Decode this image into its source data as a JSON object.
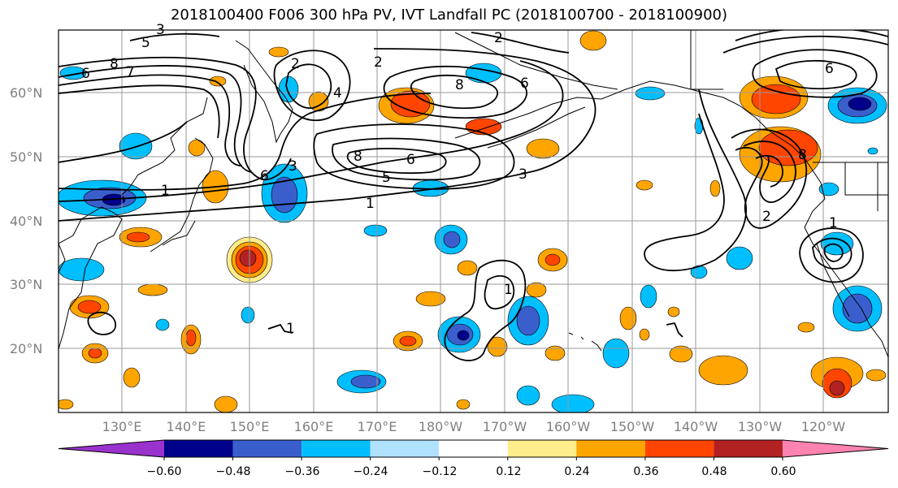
{
  "title": "2018100400 F006 300 hPa PV, IVT Landfall PC (2018100700 - 2018100900)",
  "lat_labels": [
    "60°N",
    "50°N",
    "40°N",
    "30°N",
    "20°N"
  ],
  "lon_labels": [
    "130°E",
    "140°E",
    "150°E",
    "160°E",
    "170°E",
    "180°W",
    "170°W",
    "160°W",
    "150°W",
    "140°W",
    "130°W",
    "120°W"
  ],
  "colorbar": {
    "ticks": [
      "−0.60",
      "−0.48",
      "−0.36",
      "−0.24",
      "−0.12",
      "0.12",
      "0.24",
      "0.36",
      "0.48",
      "0.60"
    ],
    "colors": [
      "#9a32cd",
      "#00008b",
      "#3a5fcd",
      "#00bfff",
      "#b0e2ff",
      "#ffffff",
      "#ffec8b",
      "#ffa500",
      "#ff4500",
      "#b22222",
      "#ff83b0"
    ]
  },
  "contour_labels": [
    "1",
    "2",
    "3",
    "4",
    "5",
    "6",
    "7",
    "8"
  ],
  "map": {
    "region": "North Pacific",
    "lat_range": [
      10,
      70
    ],
    "lon_range": [
      "120°E",
      "110°W"
    ],
    "contour_color": "#000000",
    "grid_color": "#999999"
  }
}
